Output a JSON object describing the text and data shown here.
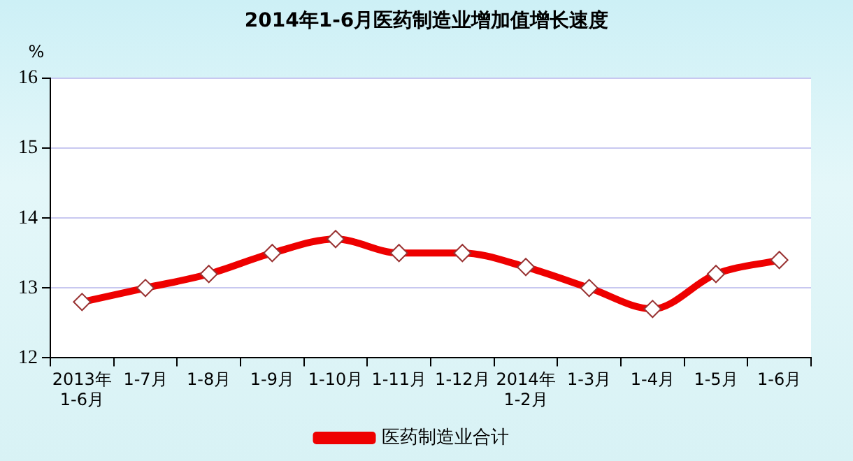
{
  "chart_data": {
    "type": "line",
    "title": "2014年1-6月医药制造业增加值增长速度",
    "ylabel": "%",
    "categories": [
      "2013年\n1-6月",
      "1-7月",
      "1-8月",
      "1-9月",
      "1-10月",
      "1-11月",
      "1-12月",
      "2014年\n1-2月",
      "1-3月",
      "1-4月",
      "1-5月",
      "1-6月"
    ],
    "series": [
      {
        "name": "医药制造业合计",
        "color": "#ee0000",
        "values": [
          12.8,
          13.0,
          13.2,
          13.5,
          13.7,
          13.5,
          13.5,
          13.3,
          13.0,
          12.7,
          13.2,
          13.4
        ]
      }
    ],
    "ylim": [
      12,
      16
    ],
    "yticks": [
      12,
      13,
      14,
      15,
      16
    ],
    "grid": "y",
    "legend": "bottom",
    "marker": "diamond",
    "line_style": "solid"
  }
}
